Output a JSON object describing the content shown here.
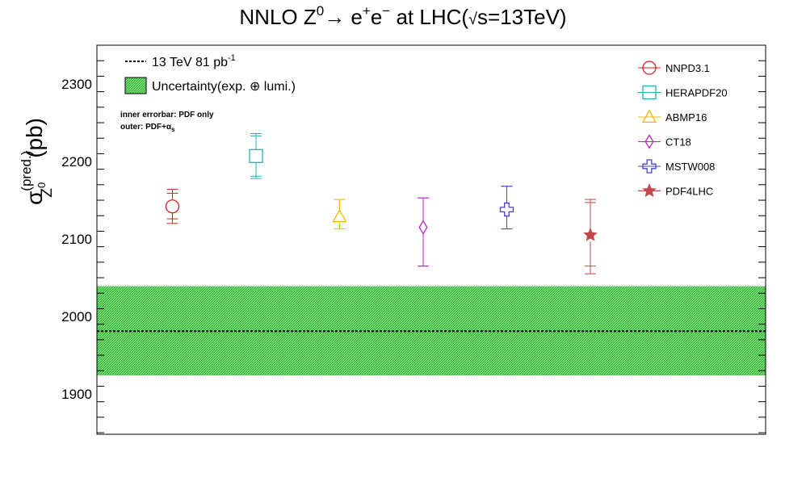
{
  "chart_data": {
    "type": "scatter",
    "title": "NNLO Z⁰→ e⁺e⁻ at LHC(√s=13TeV)",
    "title_parts": {
      "pre": "NNLO Z",
      "sup1": "0",
      "arrow": "→ e",
      "sup2": "+",
      "mid": "e",
      "sup3": "−",
      "post1": " at LHC(",
      "root": "√",
      "post2": "s=13TeV)"
    },
    "ylabel": "σ_Z⁰^(pred.) (pb)",
    "ylabel_parts": {
      "sigma": "σ",
      "sup": "(pred.)",
      "sub": "Z",
      "subsup": "0",
      "unit": "(pb)"
    },
    "xlabel": "",
    "ylim": [
      1848,
      2350
    ],
    "yticks": [
      1900,
      2000,
      2100,
      2200,
      2300
    ],
    "ytick_labels": [
      "1900",
      "2000",
      "2100",
      "2200",
      "2300"
    ],
    "grid": false,
    "legend_position": "top-right",
    "measurement": {
      "label": "13 TeV 81 pb",
      "label_sup": "-1",
      "value": 1981,
      "band_low": 1924,
      "band_high": 2039,
      "band_label": "Uncertainty(exp. ⊕ lumi.)",
      "band_color": "#2ecc40",
      "line_color": "#000000"
    },
    "notes": {
      "line1": "inner errorbar: PDF only",
      "line2": "outer: PDF+α",
      "line2_sub": "s"
    },
    "series": [
      {
        "name": "NNPD3.1",
        "x": 1,
        "y": 2142,
        "inner": [
          2126,
          2159
        ],
        "outer": [
          2120,
          2164
        ],
        "color": "#d62020",
        "marker": "circle"
      },
      {
        "name": "HERAPDF20",
        "x": 2,
        "y": 2207,
        "inner": [
          2181,
          2233
        ],
        "outer": [
          2178,
          2236
        ],
        "color": "#20b2b2",
        "marker": "square"
      },
      {
        "name": "ABMP16",
        "x": 3,
        "y": 2129,
        "inner": [
          2113,
          2151
        ],
        "outer": [
          2113,
          2151
        ],
        "color": "#f2b800",
        "marker": "triangle"
      },
      {
        "name": "CT18",
        "x": 4,
        "y": 2115,
        "inner": [
          2065,
          2153
        ],
        "outer": [
          2065,
          2153
        ],
        "color": "#c020c0",
        "marker": "diamond"
      },
      {
        "name": "MSTW008",
        "x": 5,
        "y": 2138,
        "inner": [
          2113,
          2168
        ],
        "outer": [
          2113,
          2168
        ],
        "color": "#4444cc",
        "marker": "cross"
      },
      {
        "name": "PDF4LHC",
        "x": 6,
        "y": 2105,
        "inner": [
          2065,
          2147
        ],
        "outer": [
          2055,
          2151
        ],
        "color": "#c04848",
        "marker": "star"
      }
    ],
    "xlim": [
      0,
      8
    ]
  }
}
